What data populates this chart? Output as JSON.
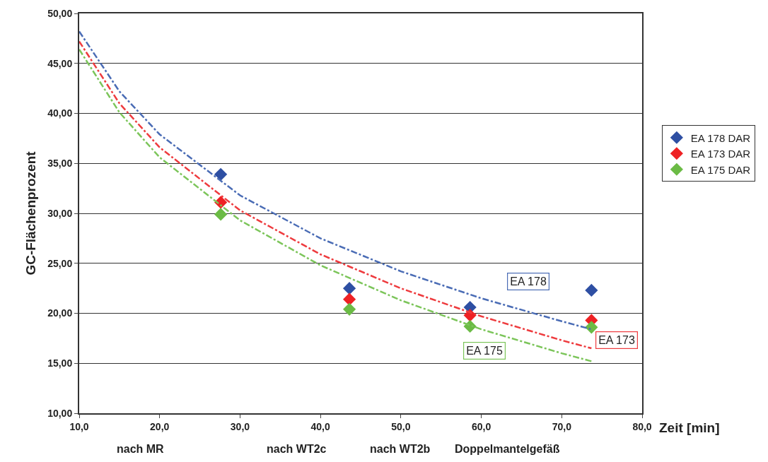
{
  "chart_data": {
    "type": "scatter",
    "xlabel": "Zeit [min]",
    "ylabel": "GC-Flächenprozent",
    "xlim": [
      10,
      80
    ],
    "xticks": [
      {
        "value": 10,
        "label": "10,0"
      },
      {
        "value": 20,
        "label": "20,0"
      },
      {
        "value": 30,
        "label": "30,0"
      },
      {
        "value": 40,
        "label": "40,0"
      },
      {
        "value": 50,
        "label": "50,0"
      },
      {
        "value": 60,
        "label": "60,0"
      },
      {
        "value": 70,
        "label": "70,0"
      },
      {
        "value": 80,
        "label": "80,0"
      }
    ],
    "ylim": [
      10,
      50
    ],
    "yticks": [
      {
        "value": 10,
        "label": "10,00"
      },
      {
        "value": 15,
        "label": "15,00"
      },
      {
        "value": 20,
        "label": "20,00"
      },
      {
        "value": 25,
        "label": "25,00"
      },
      {
        "value": 30,
        "label": "30,00"
      },
      {
        "value": 35,
        "label": "35,00"
      },
      {
        "value": 40,
        "label": "40,00"
      },
      {
        "value": 45,
        "label": "45,00"
      },
      {
        "value": 50,
        "label": "50,00"
      }
    ],
    "grid": "y",
    "legend": "right",
    "marker": "diamond",
    "x": [
      27.6,
      43.6,
      58.6,
      73.7
    ],
    "series": [
      {
        "name": "EA 178 DAR",
        "color": "#2e4fa3",
        "values": [
          33.9,
          22.5,
          20.6,
          22.3
        ]
      },
      {
        "name": "EA 173 DAR",
        "color": "#ee2124",
        "values": [
          31.1,
          21.4,
          19.8,
          19.3
        ]
      },
      {
        "name": "EA 175 DAR",
        "color": "#6bbb45",
        "values": [
          29.9,
          20.4,
          18.7,
          18.6
        ]
      },
      {
        "type": "line",
        "color": "#4a6cb5",
        "line_style": "dashed",
        "marker": "none",
        "x": [
          10,
          15,
          20,
          30,
          40,
          50,
          60,
          70,
          73.7
        ],
        "values": [
          48.2,
          42.2,
          37.9,
          31.8,
          27.5,
          24.2,
          21.5,
          19.2,
          18.4
        ]
      },
      {
        "type": "line",
        "color": "#ee3b3e",
        "line_style": "dashed",
        "marker": "none",
        "x": [
          10,
          15,
          20,
          30,
          40,
          50,
          60,
          70,
          73.7
        ],
        "values": [
          47.2,
          41.0,
          36.6,
          30.3,
          25.9,
          22.5,
          19.7,
          17.3,
          16.5
        ]
      },
      {
        "type": "line",
        "color": "#7cc55a",
        "line_style": "dashed",
        "marker": "none",
        "x": [
          10,
          15,
          20,
          30,
          40,
          50,
          60,
          70,
          73.7
        ],
        "values": [
          46.4,
          40.1,
          35.6,
          29.3,
          24.8,
          21.3,
          18.4,
          16.0,
          15.2
        ]
      }
    ],
    "annotations": [
      "EA 178",
      "EA 173",
      "EA 175",
      "nach MR",
      "nach WT2c",
      "nach WT2b",
      "Doppelmantelgefäß"
    ]
  }
}
